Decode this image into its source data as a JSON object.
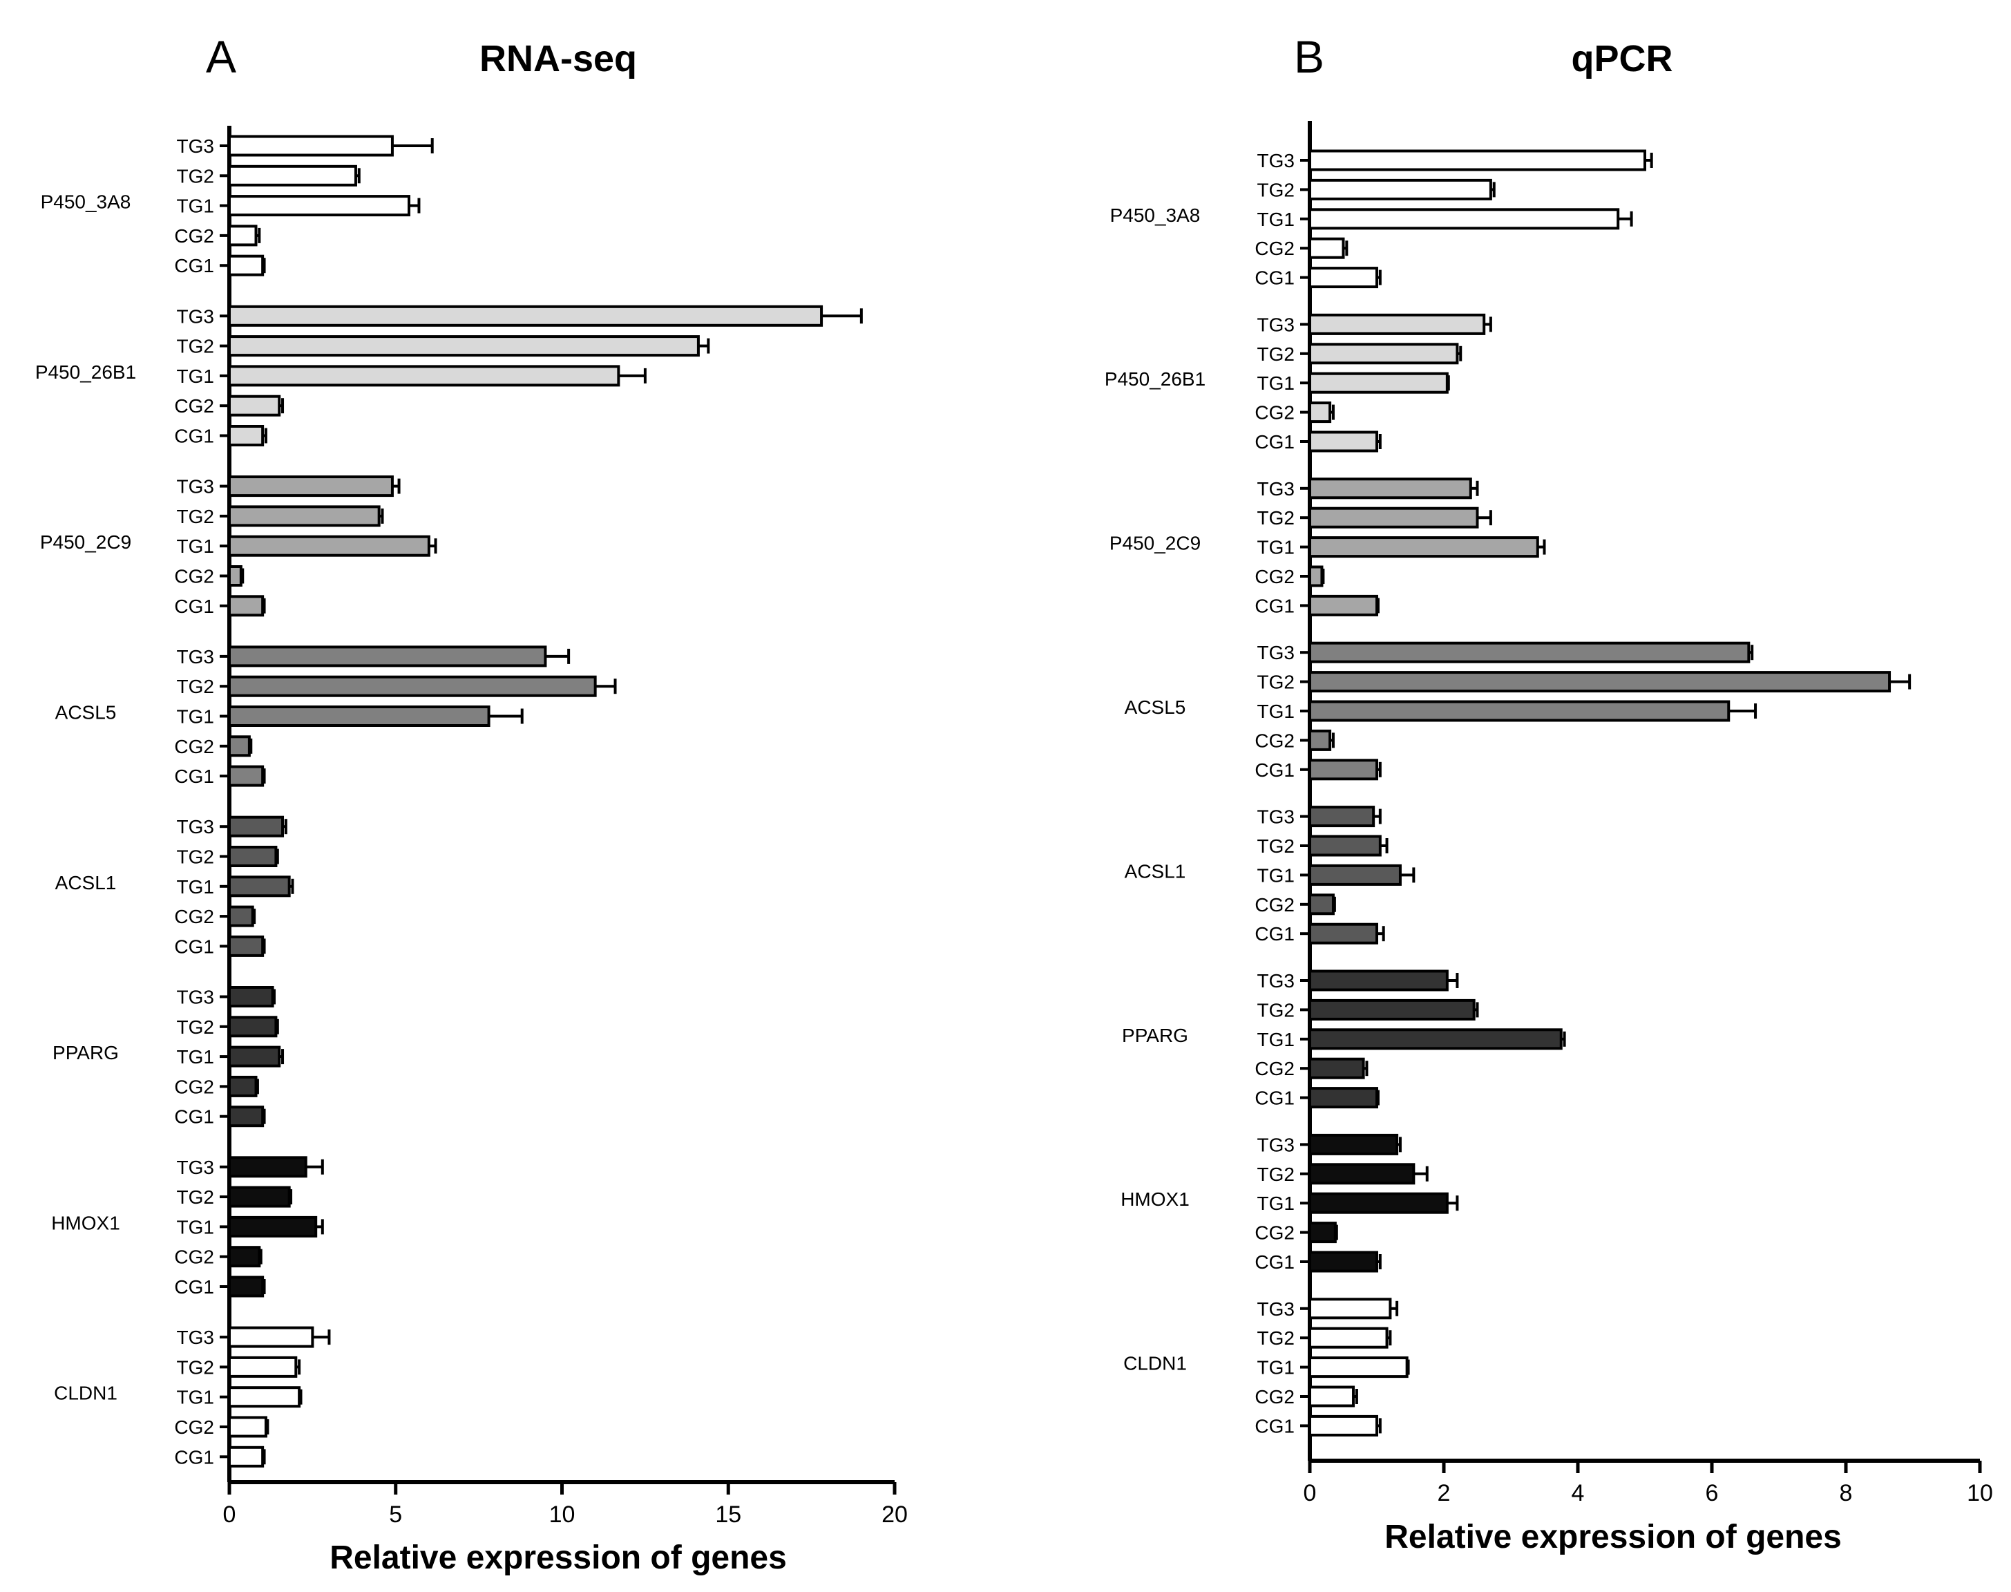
{
  "chart_data": [
    {
      "type": "bar",
      "orientation": "horizontal",
      "panel_label": "A",
      "title": "RNA-seq",
      "xlabel": "Relative expression of genes",
      "ylabel": "",
      "xlim": [
        0,
        20
      ],
      "xticks": [
        "0",
        "5",
        "10",
        "15",
        "20"
      ],
      "groups": [
        {
          "gene": "P450_3A8",
          "color": "#ffffff",
          "conditions": [
            "TG3",
            "TG2",
            "TG1",
            "CG2",
            "CG1"
          ],
          "values": [
            4.9,
            3.8,
            5.4,
            0.8,
            1.0
          ],
          "errors": [
            1.2,
            0.1,
            0.3,
            0.1,
            0.05
          ]
        },
        {
          "gene": "P450_26B1",
          "color": "#d9d9d9",
          "conditions": [
            "TG3",
            "TG2",
            "TG1",
            "CG2",
            "CG1"
          ],
          "values": [
            17.8,
            14.1,
            11.7,
            1.5,
            1.0
          ],
          "errors": [
            1.2,
            0.3,
            0.8,
            0.1,
            0.1
          ]
        },
        {
          "gene": "P450_2C9",
          "color": "#a6a6a6",
          "conditions": [
            "TG3",
            "TG2",
            "TG1",
            "CG2",
            "CG1"
          ],
          "values": [
            4.9,
            4.5,
            6.0,
            0.35,
            1.0
          ],
          "errors": [
            0.2,
            0.1,
            0.2,
            0.05,
            0.05
          ]
        },
        {
          "gene": "ACSL5",
          "color": "#808080",
          "conditions": [
            "TG3",
            "TG2",
            "TG1",
            "CG2",
            "CG1"
          ],
          "values": [
            9.5,
            11.0,
            7.8,
            0.6,
            1.0
          ],
          "errors": [
            0.7,
            0.6,
            1.0,
            0.05,
            0.05
          ]
        },
        {
          "gene": "ACSL1",
          "color": "#595959",
          "conditions": [
            "TG3",
            "TG2",
            "TG1",
            "CG2",
            "CG1"
          ],
          "values": [
            1.6,
            1.4,
            1.8,
            0.7,
            1.0
          ],
          "errors": [
            0.1,
            0.05,
            0.1,
            0.05,
            0.05
          ]
        },
        {
          "gene": "PPARG",
          "color": "#333333",
          "conditions": [
            "TG3",
            "TG2",
            "TG1",
            "CG2",
            "CG1"
          ],
          "values": [
            1.3,
            1.4,
            1.5,
            0.8,
            1.0
          ],
          "errors": [
            0.05,
            0.05,
            0.1,
            0.05,
            0.05
          ]
        },
        {
          "gene": "HMOX1",
          "color": "#0d0d0d",
          "conditions": [
            "TG3",
            "TG2",
            "TG1",
            "CG2",
            "CG1"
          ],
          "values": [
            2.3,
            1.8,
            2.6,
            0.9,
            1.0
          ],
          "errors": [
            0.5,
            0.05,
            0.2,
            0.05,
            0.05
          ]
        },
        {
          "gene": "CLDN1",
          "color": "#ffffff",
          "conditions": [
            "TG3",
            "TG2",
            "TG1",
            "CG2",
            "CG1"
          ],
          "values": [
            2.5,
            2.0,
            2.1,
            1.1,
            1.0
          ],
          "errors": [
            0.5,
            0.1,
            0.05,
            0.05,
            0.05
          ]
        }
      ]
    },
    {
      "type": "bar",
      "orientation": "horizontal",
      "panel_label": "B",
      "title": "qPCR",
      "xlabel": "Relative expression of genes",
      "ylabel": "",
      "xlim": [
        0,
        10
      ],
      "xticks": [
        "0",
        "2",
        "4",
        "6",
        "8",
        "10"
      ],
      "groups": [
        {
          "gene": "P450_3A8",
          "color": "#ffffff",
          "conditions": [
            "TG3",
            "TG2",
            "TG1",
            "CG2",
            "CG1"
          ],
          "values": [
            5.0,
            2.7,
            4.6,
            0.5,
            1.0
          ],
          "errors": [
            0.1,
            0.05,
            0.2,
            0.05,
            0.05
          ]
        },
        {
          "gene": "P450_26B1",
          "color": "#d9d9d9",
          "conditions": [
            "TG3",
            "TG2",
            "TG1",
            "CG2",
            "CG1"
          ],
          "values": [
            2.6,
            2.2,
            2.05,
            0.3,
            1.0
          ],
          "errors": [
            0.1,
            0.05,
            0.02,
            0.05,
            0.05
          ]
        },
        {
          "gene": "P450_2C9",
          "color": "#a6a6a6",
          "conditions": [
            "TG3",
            "TG2",
            "TG1",
            "CG2",
            "CG1"
          ],
          "values": [
            2.4,
            2.5,
            3.4,
            0.18,
            1.0
          ],
          "errors": [
            0.1,
            0.2,
            0.1,
            0.02,
            0.02
          ]
        },
        {
          "gene": "ACSL5",
          "color": "#808080",
          "conditions": [
            "TG3",
            "TG2",
            "TG1",
            "CG2",
            "CG1"
          ],
          "values": [
            6.55,
            8.65,
            6.25,
            0.3,
            1.0
          ],
          "errors": [
            0.05,
            0.3,
            0.4,
            0.05,
            0.05
          ]
        },
        {
          "gene": "ACSL1",
          "color": "#595959",
          "conditions": [
            "TG3",
            "TG2",
            "TG1",
            "CG2",
            "CG1"
          ],
          "values": [
            0.95,
            1.05,
            1.35,
            0.35,
            1.0
          ],
          "errors": [
            0.1,
            0.1,
            0.2,
            0.02,
            0.1
          ]
        },
        {
          "gene": "PPARG",
          "color": "#333333",
          "conditions": [
            "TG3",
            "TG2",
            "TG1",
            "CG2",
            "CG1"
          ],
          "values": [
            2.05,
            2.45,
            3.75,
            0.8,
            1.0
          ],
          "errors": [
            0.15,
            0.05,
            0.05,
            0.05,
            0.02
          ]
        },
        {
          "gene": "HMOX1",
          "color": "#0d0d0d",
          "conditions": [
            "TG3",
            "TG2",
            "TG1",
            "CG2",
            "CG1"
          ],
          "values": [
            1.3,
            1.55,
            2.05,
            0.38,
            1.0
          ],
          "errors": [
            0.05,
            0.2,
            0.15,
            0.02,
            0.05
          ]
        },
        {
          "gene": "CLDN1",
          "color": "#ffffff",
          "conditions": [
            "TG3",
            "TG2",
            "TG1",
            "CG2",
            "CG1"
          ],
          "values": [
            1.2,
            1.15,
            1.45,
            0.65,
            1.0
          ],
          "errors": [
            0.1,
            0.05,
            0.02,
            0.05,
            0.05
          ]
        }
      ]
    }
  ]
}
